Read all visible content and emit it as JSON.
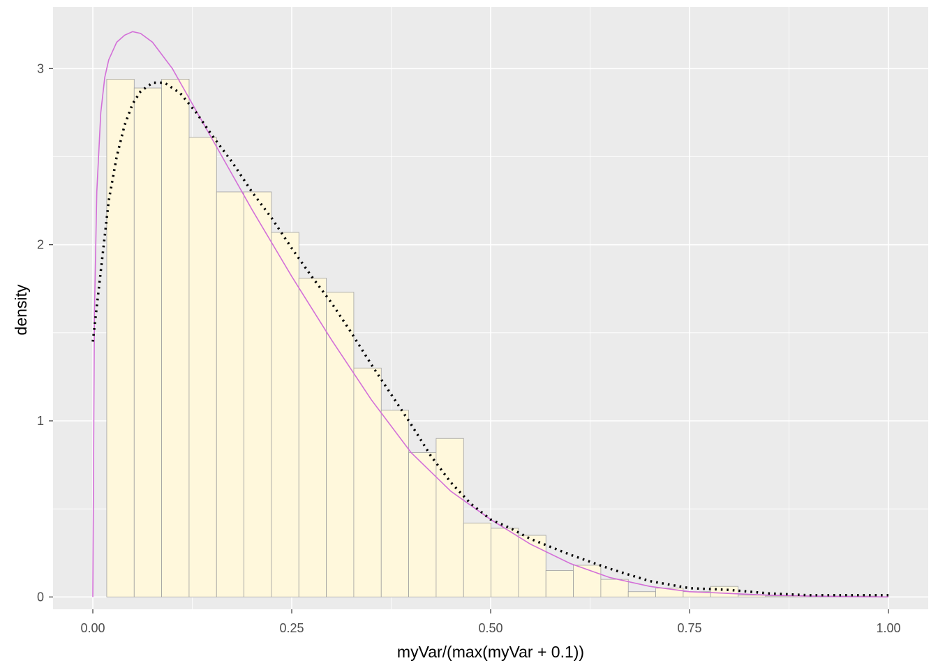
{
  "chart_data": {
    "type": "bar",
    "xlabel": "myVar/(max(myVar + 0.1))",
    "ylabel": "density",
    "xlim": [
      -0.05,
      1.05
    ],
    "ylim": [
      -0.07,
      3.35
    ],
    "x_ticks": [
      {
        "value": 0.0,
        "label": "0.00"
      },
      {
        "value": 0.25,
        "label": "0.25"
      },
      {
        "value": 0.5,
        "label": "0.50"
      },
      {
        "value": 0.75,
        "label": "0.75"
      },
      {
        "value": 1.0,
        "label": "1.00"
      }
    ],
    "y_ticks": [
      {
        "value": 0,
        "label": "0"
      },
      {
        "value": 1,
        "label": "1"
      },
      {
        "value": 2,
        "label": "2"
      },
      {
        "value": 3,
        "label": "3"
      }
    ],
    "grid": true,
    "colors": {
      "panel_background": "#ebebeb",
      "grid_major": "#ffffff",
      "bar_fill": "#fff8dc",
      "bar_outline": "#a0a0a0",
      "beta_curve": "#d36fd8",
      "density_curve": "#000000"
    },
    "histogram": {
      "bin_width": 0.0345,
      "bins": [
        {
          "x0": 0.0175,
          "density": 2.94
        },
        {
          "x0": 0.052,
          "density": 2.89
        },
        {
          "x0": 0.0865,
          "density": 2.94
        },
        {
          "x0": 0.121,
          "density": 2.61
        },
        {
          "x0": 0.1555,
          "density": 2.3
        },
        {
          "x0": 0.19,
          "density": 2.3
        },
        {
          "x0": 0.2245,
          "density": 2.07
        },
        {
          "x0": 0.259,
          "density": 1.81
        },
        {
          "x0": 0.2935,
          "density": 1.73
        },
        {
          "x0": 0.328,
          "density": 1.3
        },
        {
          "x0": 0.3625,
          "density": 1.06
        },
        {
          "x0": 0.397,
          "density": 0.82
        },
        {
          "x0": 0.4315,
          "density": 0.9
        },
        {
          "x0": 0.466,
          "density": 0.42
        },
        {
          "x0": 0.5005,
          "density": 0.39
        },
        {
          "x0": 0.535,
          "density": 0.35
        },
        {
          "x0": 0.5695,
          "density": 0.15
        },
        {
          "x0": 0.604,
          "density": 0.18
        },
        {
          "x0": 0.6385,
          "density": 0.1
        },
        {
          "x0": 0.673,
          "density": 0.03
        },
        {
          "x0": 0.7075,
          "density": 0.05
        },
        {
          "x0": 0.742,
          "density": 0.03
        },
        {
          "x0": 0.7765,
          "density": 0.06
        },
        {
          "x0": 0.811,
          "density": 0.01
        },
        {
          "x0": 0.8455,
          "density": 0.005
        },
        {
          "x0": 0.88,
          "density": 0.005
        },
        {
          "x0": 0.9145,
          "density": 0.005
        },
        {
          "x0": 0.949,
          "density": 0.005
        }
      ]
    },
    "series": [
      {
        "style": "solid",
        "x": [
          0.0,
          0.002,
          0.005,
          0.01,
          0.015,
          0.02,
          0.03,
          0.04,
          0.05,
          0.06,
          0.075,
          0.1,
          0.125,
          0.15,
          0.175,
          0.2,
          0.25,
          0.3,
          0.35,
          0.4,
          0.45,
          0.5,
          0.55,
          0.6,
          0.65,
          0.7,
          0.75,
          0.8,
          0.85,
          0.9,
          0.95,
          1.0
        ],
        "y": [
          0.0,
          1.6,
          2.3,
          2.75,
          2.95,
          3.05,
          3.15,
          3.19,
          3.21,
          3.2,
          3.15,
          3.0,
          2.8,
          2.6,
          2.4,
          2.2,
          1.82,
          1.46,
          1.12,
          0.82,
          0.6,
          0.44,
          0.3,
          0.19,
          0.11,
          0.06,
          0.03,
          0.02,
          0.01,
          0.005,
          0.002,
          0.0
        ]
      },
      {
        "style": "dotted",
        "x": [
          0.0,
          0.005,
          0.01,
          0.015,
          0.02,
          0.03,
          0.04,
          0.05,
          0.06,
          0.075,
          0.09,
          0.11,
          0.13,
          0.15,
          0.175,
          0.2,
          0.225,
          0.25,
          0.275,
          0.3,
          0.325,
          0.35,
          0.375,
          0.4,
          0.425,
          0.45,
          0.475,
          0.5,
          0.525,
          0.55,
          0.6,
          0.65,
          0.7,
          0.75,
          0.8,
          0.85,
          0.9,
          0.95,
          1.0
        ],
        "y": [
          1.45,
          1.65,
          1.85,
          2.05,
          2.25,
          2.5,
          2.68,
          2.8,
          2.87,
          2.92,
          2.92,
          2.86,
          2.75,
          2.62,
          2.47,
          2.3,
          2.15,
          1.98,
          1.82,
          1.67,
          1.5,
          1.32,
          1.15,
          0.98,
          0.8,
          0.65,
          0.53,
          0.44,
          0.39,
          0.33,
          0.24,
          0.16,
          0.09,
          0.05,
          0.04,
          0.02,
          0.01,
          0.01,
          0.01
        ]
      }
    ]
  }
}
